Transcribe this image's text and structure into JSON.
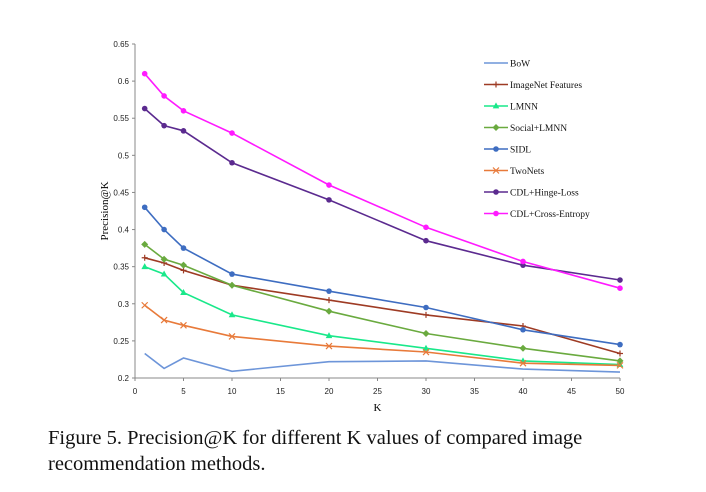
{
  "caption": "Figure 5. Precision@K for different K values of compared image recommendation methods.",
  "chart_data": {
    "type": "line",
    "xlabel": "K",
    "ylabel": "Precision@K",
    "xlim": [
      0,
      50
    ],
    "ylim": [
      0.2,
      0.65
    ],
    "xticks": [
      0,
      5,
      10,
      15,
      20,
      25,
      30,
      35,
      40,
      45,
      50
    ],
    "yticks": [
      0.2,
      0.25,
      0.3,
      0.35,
      0.4,
      0.45,
      0.5,
      0.55,
      0.6,
      0.65
    ],
    "ytick_labels": [
      "0.2",
      "0.25",
      "0.3",
      "0.35",
      "0.4",
      "0.45",
      "0.5",
      "0.55",
      "0.6",
      "0.65"
    ],
    "x": [
      1,
      3,
      5,
      10,
      20,
      30,
      40,
      50
    ],
    "legend_position": "top-right",
    "grid": false,
    "series": [
      {
        "name": "BoW",
        "color": "#6d95d9",
        "marker": "none",
        "values": [
          0.233,
          0.213,
          0.227,
          0.209,
          0.222,
          0.223,
          0.212,
          0.208
        ]
      },
      {
        "name": "ImageNet Features",
        "color": "#9e3b24",
        "marker": "plus",
        "values": [
          0.362,
          0.355,
          0.345,
          0.325,
          0.305,
          0.285,
          0.27,
          0.233
        ]
      },
      {
        "name": "LMNN",
        "color": "#19e88a",
        "marker": "triangle",
        "values": [
          0.35,
          0.34,
          0.315,
          0.285,
          0.257,
          0.24,
          0.223,
          0.218
        ]
      },
      {
        "name": "Social+LMNN",
        "color": "#6aaa3f",
        "marker": "diamond",
        "values": [
          0.38,
          0.36,
          0.352,
          0.325,
          0.29,
          0.26,
          0.24,
          0.223
        ]
      },
      {
        "name": "SIDL",
        "color": "#3e6dc1",
        "marker": "circle",
        "values": [
          0.43,
          0.4,
          0.375,
          0.34,
          0.317,
          0.295,
          0.265,
          0.245
        ]
      },
      {
        "name": "TwoNets",
        "color": "#e87a3a",
        "marker": "x",
        "values": [
          0.298,
          0.278,
          0.271,
          0.256,
          0.243,
          0.235,
          0.22,
          0.217
        ]
      },
      {
        "name": "CDL+Hinge-Loss",
        "color": "#5b2a8f",
        "marker": "circle",
        "values": [
          0.563,
          0.54,
          0.533,
          0.49,
          0.44,
          0.385,
          0.352,
          0.332
        ]
      },
      {
        "name": "CDL+Cross-Entropy",
        "color": "#ff1aff",
        "marker": "circle",
        "values": [
          0.61,
          0.58,
          0.56,
          0.53,
          0.46,
          0.403,
          0.357,
          0.321
        ]
      }
    ]
  }
}
